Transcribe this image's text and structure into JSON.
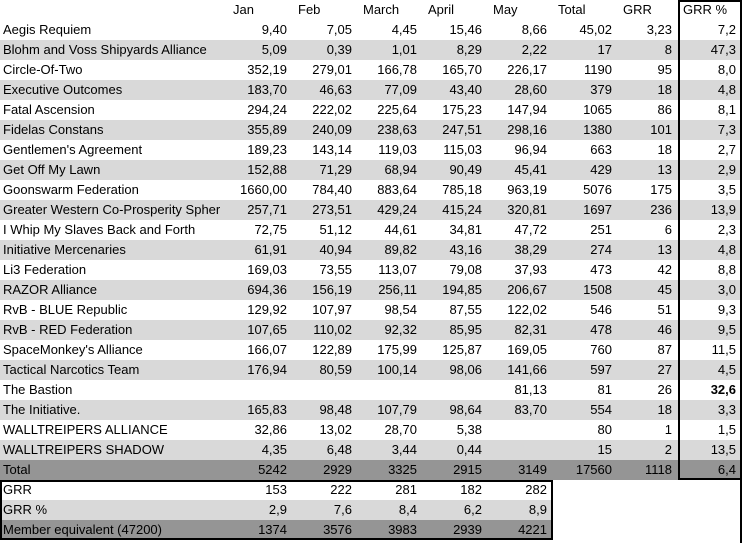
{
  "colors": {
    "stripe": "#d9d9d9",
    "dark_row": "#959595",
    "outline": "#000000"
  },
  "table": {
    "columns": [
      "",
      "Jan",
      "Feb",
      "March",
      "April",
      "May",
      "Total",
      "GRR",
      "GRR %"
    ],
    "rows": [
      {
        "type": "data",
        "name": "Aegis Requiem",
        "values": [
          "9,40",
          "7,05",
          "4,45",
          "15,46",
          "8,66",
          "45,02",
          "3,23",
          "7,2"
        ]
      },
      {
        "type": "data",
        "name": "Blohm and Voss Shipyards Alliance",
        "values": [
          "5,09",
          "0,39",
          "1,01",
          "8,29",
          "2,22",
          "17",
          "8",
          "47,3"
        ]
      },
      {
        "type": "data",
        "name": "Circle-Of-Two",
        "values": [
          "352,19",
          "279,01",
          "166,78",
          "165,70",
          "226,17",
          "1190",
          "95",
          "8,0"
        ]
      },
      {
        "type": "data",
        "name": "Executive Outcomes",
        "values": [
          "183,70",
          "46,63",
          "77,09",
          "43,40",
          "28,60",
          "379",
          "18",
          "4,8"
        ]
      },
      {
        "type": "data",
        "name": "Fatal Ascension",
        "values": [
          "294,24",
          "222,02",
          "225,64",
          "175,23",
          "147,94",
          "1065",
          "86",
          "8,1"
        ]
      },
      {
        "type": "data",
        "name": "Fidelas Constans",
        "values": [
          "355,89",
          "240,09",
          "238,63",
          "247,51",
          "298,16",
          "1380",
          "101",
          "7,3"
        ]
      },
      {
        "type": "data",
        "name": "Gentlemen's Agreement",
        "values": [
          "189,23",
          "143,14",
          "119,03",
          "115,03",
          "96,94",
          "663",
          "18",
          "2,7"
        ]
      },
      {
        "type": "data",
        "name": "Get Off My Lawn",
        "values": [
          "152,88",
          "71,29",
          "68,94",
          "90,49",
          "45,41",
          "429",
          "13",
          "2,9"
        ]
      },
      {
        "type": "data",
        "name": "Goonswarm Federation",
        "values": [
          "1660,00",
          "784,40",
          "883,64",
          "785,18",
          "963,19",
          "5076",
          "175",
          "3,5"
        ]
      },
      {
        "type": "data",
        "name": "Greater Western Co-Prosperity Spher",
        "values": [
          "257,71",
          "273,51",
          "429,24",
          "415,24",
          "320,81",
          "1697",
          "236",
          "13,9"
        ]
      },
      {
        "type": "data",
        "name": "I Whip My Slaves Back and Forth",
        "values": [
          "72,75",
          "51,12",
          "44,61",
          "34,81",
          "47,72",
          "251",
          "6",
          "2,3"
        ]
      },
      {
        "type": "data",
        "name": "Initiative Mercenaries",
        "values": [
          "61,91",
          "40,94",
          "89,82",
          "43,16",
          "38,29",
          "274",
          "13",
          "4,8"
        ]
      },
      {
        "type": "data",
        "name": "Li3 Federation",
        "values": [
          "169,03",
          "73,55",
          "113,07",
          "79,08",
          "37,93",
          "473",
          "42",
          "8,8"
        ]
      },
      {
        "type": "data",
        "name": "RAZOR Alliance",
        "values": [
          "694,36",
          "156,19",
          "256,11",
          "194,85",
          "206,67",
          "1508",
          "45",
          "3,0"
        ]
      },
      {
        "type": "data",
        "name": "RvB - BLUE Republic",
        "values": [
          "129,92",
          "107,97",
          "98,54",
          "87,55",
          "122,02",
          "546",
          "51",
          "9,3"
        ]
      },
      {
        "type": "data",
        "name": "RvB - RED Federation",
        "values": [
          "107,65",
          "110,02",
          "92,32",
          "85,95",
          "82,31",
          "478",
          "46",
          "9,5"
        ]
      },
      {
        "type": "data",
        "name": "SpaceMonkey's Alliance",
        "values": [
          "166,07",
          "122,89",
          "175,99",
          "125,87",
          "169,05",
          "760",
          "87",
          "11,5"
        ]
      },
      {
        "type": "data",
        "name": "Tactical Narcotics Team",
        "values": [
          "176,94",
          "80,59",
          "100,14",
          "98,06",
          "141,66",
          "597",
          "27",
          "4,5"
        ]
      },
      {
        "type": "data",
        "name": "The Bastion",
        "values": [
          "",
          "",
          "",
          "",
          "81,13",
          "81",
          "26",
          "32,6"
        ],
        "bold_cols": [
          7
        ]
      },
      {
        "type": "data",
        "name": "The Initiative.",
        "values": [
          "165,83",
          "98,48",
          "107,79",
          "98,64",
          "83,70",
          "554",
          "18",
          "3,3"
        ]
      },
      {
        "type": "data",
        "name": "WALLTREIPERS ALLIANCE",
        "values": [
          "32,86",
          "13,02",
          "28,70",
          "5,38",
          "",
          "80",
          "1",
          "1,5"
        ]
      },
      {
        "type": "data",
        "name": "WALLTREIPERS SHADOW",
        "values": [
          "4,35",
          "6,48",
          "3,44",
          "0,44",
          "",
          "15",
          "2",
          "13,5"
        ]
      },
      {
        "type": "total",
        "name": "Total",
        "values": [
          "5242",
          "2929",
          "3325",
          "2915",
          "3149",
          "17560",
          "1118",
          "6,4"
        ]
      },
      {
        "type": "grr",
        "name": "GRR",
        "values": [
          "153",
          "222",
          "281",
          "182",
          "282",
          "",
          "",
          ""
        ]
      },
      {
        "type": "grrpct",
        "name": "GRR %",
        "values": [
          "2,9",
          "7,6",
          "8,4",
          "6,2",
          "8,9",
          "",
          "",
          ""
        ]
      },
      {
        "type": "member",
        "name": "Member equivalent (47200)",
        "values": [
          "1374",
          "3576",
          "3983",
          "2939",
          "4221",
          "",
          "",
          ""
        ]
      }
    ]
  }
}
